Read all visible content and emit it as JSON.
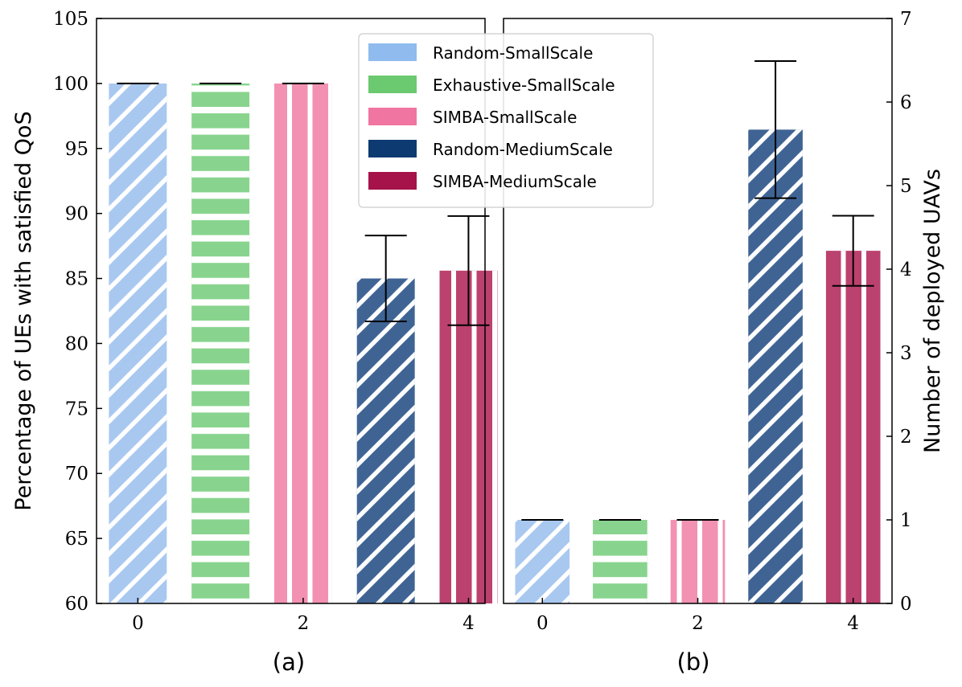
{
  "series_styles": [
    {
      "name": "Random-SmallScale",
      "color": "#a9c8f0",
      "legend_color": "#8fbbee",
      "hatch": "diag"
    },
    {
      "name": "Exhaustive-SmallScale",
      "color": "#88d48e",
      "legend_color": "#6bc96f",
      "hatch": "horiz"
    },
    {
      "name": "SIMBA-SmallScale",
      "color": "#f291b1",
      "legend_color": "#f075a0",
      "hatch": "vert"
    },
    {
      "name": "Random-MediumScale",
      "color": "#3f6494",
      "legend_color": "#0e3a72",
      "hatch": "diag"
    },
    {
      "name": "SIMBA-MediumScale",
      "color": "#bb426f",
      "legend_color": "#a5134a",
      "hatch": "vert"
    }
  ],
  "chart_data": [
    {
      "type": "bar",
      "caption": "(a)",
      "ylabel": "Percentage of UEs with satisfied QoS",
      "ylim": [
        60,
        105
      ],
      "yticks": [
        "60",
        "65",
        "70",
        "75",
        "80",
        "85",
        "90",
        "95",
        "100",
        "105"
      ],
      "y_axis_side": "left",
      "xlim": [
        -0.5,
        4.2
      ],
      "xticks": [
        "0",
        "2",
        "4"
      ],
      "series": [
        {
          "name": "Random-SmallScale",
          "x": 0,
          "value": 100,
          "error": 0
        },
        {
          "name": "Exhaustive-SmallScale",
          "x": 1,
          "value": 100,
          "error": 0
        },
        {
          "name": "SIMBA-SmallScale",
          "x": 2,
          "value": 100,
          "error": 0
        },
        {
          "name": "Random-MediumScale",
          "x": 3,
          "value": 85,
          "error": 3.3
        },
        {
          "name": "SIMBA-MediumScale",
          "x": 4,
          "value": 85.6,
          "error": 4.2
        }
      ]
    },
    {
      "type": "bar",
      "caption": "(b)",
      "ylabel": "Number of deployed UAVs",
      "ylim": [
        0,
        7
      ],
      "yticks": [
        "0",
        "1",
        "2",
        "3",
        "4",
        "5",
        "6",
        "7"
      ],
      "y_axis_side": "right",
      "xlim": [
        -0.5,
        4.5
      ],
      "xticks": [
        "0",
        "2",
        "4"
      ],
      "series": [
        {
          "name": "Random-SmallScale",
          "x": 0,
          "value": 1,
          "error": 0
        },
        {
          "name": "Exhaustive-SmallScale",
          "x": 1,
          "value": 1,
          "error": 0
        },
        {
          "name": "SIMBA-SmallScale",
          "x": 2,
          "value": 1,
          "error": 0
        },
        {
          "name": "Random-MediumScale",
          "x": 3,
          "value": 5.67,
          "error": 0.82
        },
        {
          "name": "SIMBA-MediumScale",
          "x": 4,
          "value": 4.22,
          "error": 0.42
        }
      ]
    }
  ],
  "legend": {
    "position": "top-center",
    "entries": [
      "Random-SmallScale",
      "Exhaustive-SmallScale",
      "SIMBA-SmallScale",
      "Random-MediumScale",
      "SIMBA-MediumScale"
    ]
  }
}
